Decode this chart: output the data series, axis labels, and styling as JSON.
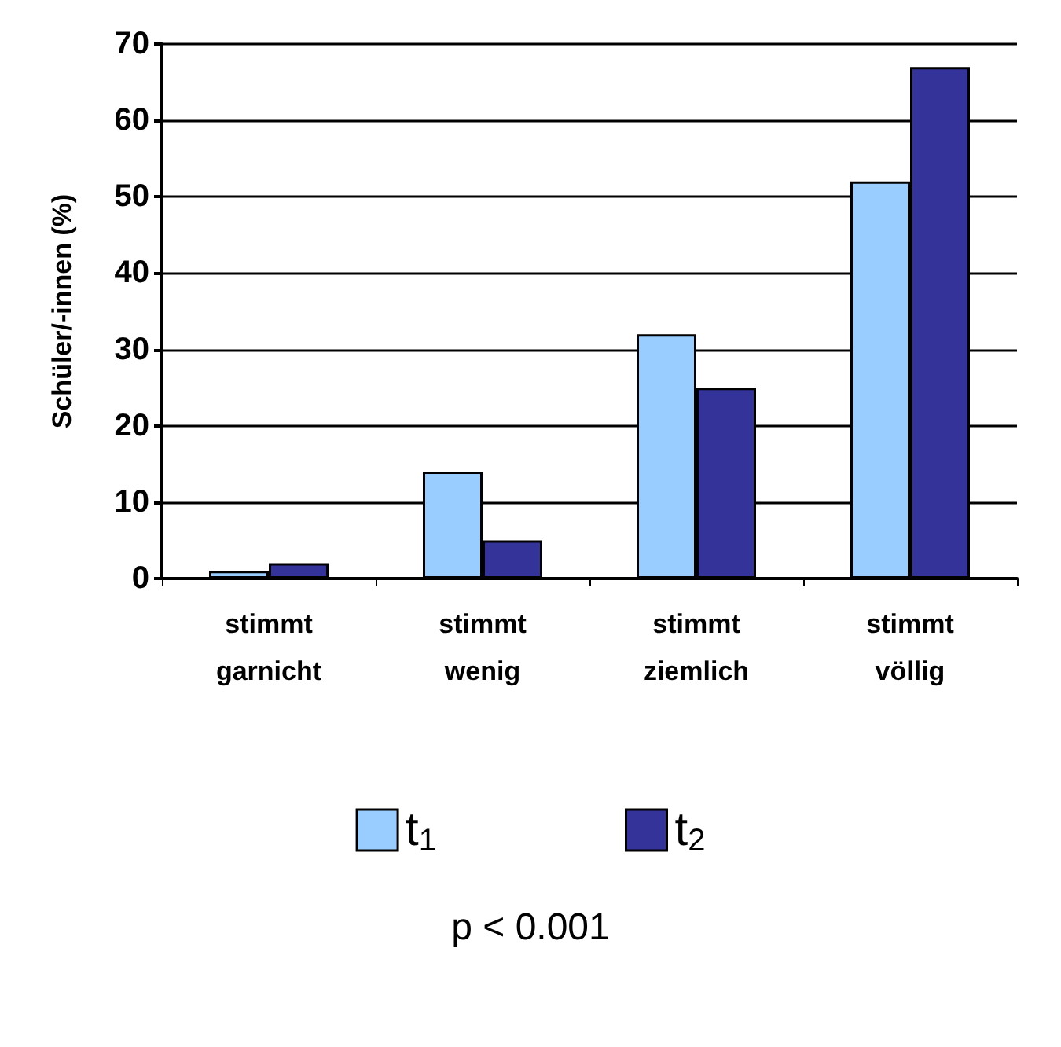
{
  "chart_data": {
    "type": "bar",
    "ylabel": "Schüler/-innen (%)",
    "categories": [
      "stimmt\ngarnicht",
      "stimmt\nwenig",
      "stimmt\nziemlich",
      "stimmt\nvöllig"
    ],
    "series": [
      {
        "name": "t$_{1}$",
        "color": "#99ccff",
        "values": [
          1,
          14,
          32,
          52
        ]
      },
      {
        "name": "t$_{2}$",
        "color": "#333399",
        "values": [
          2,
          5,
          25,
          67
        ]
      }
    ],
    "ylim": [
      0,
      70
    ],
    "yticks": [
      0,
      10,
      20,
      30,
      40,
      50,
      60,
      70
    ],
    "grid": "y",
    "legend": "bottom",
    "annotations": [
      "p < 0.001"
    ]
  }
}
